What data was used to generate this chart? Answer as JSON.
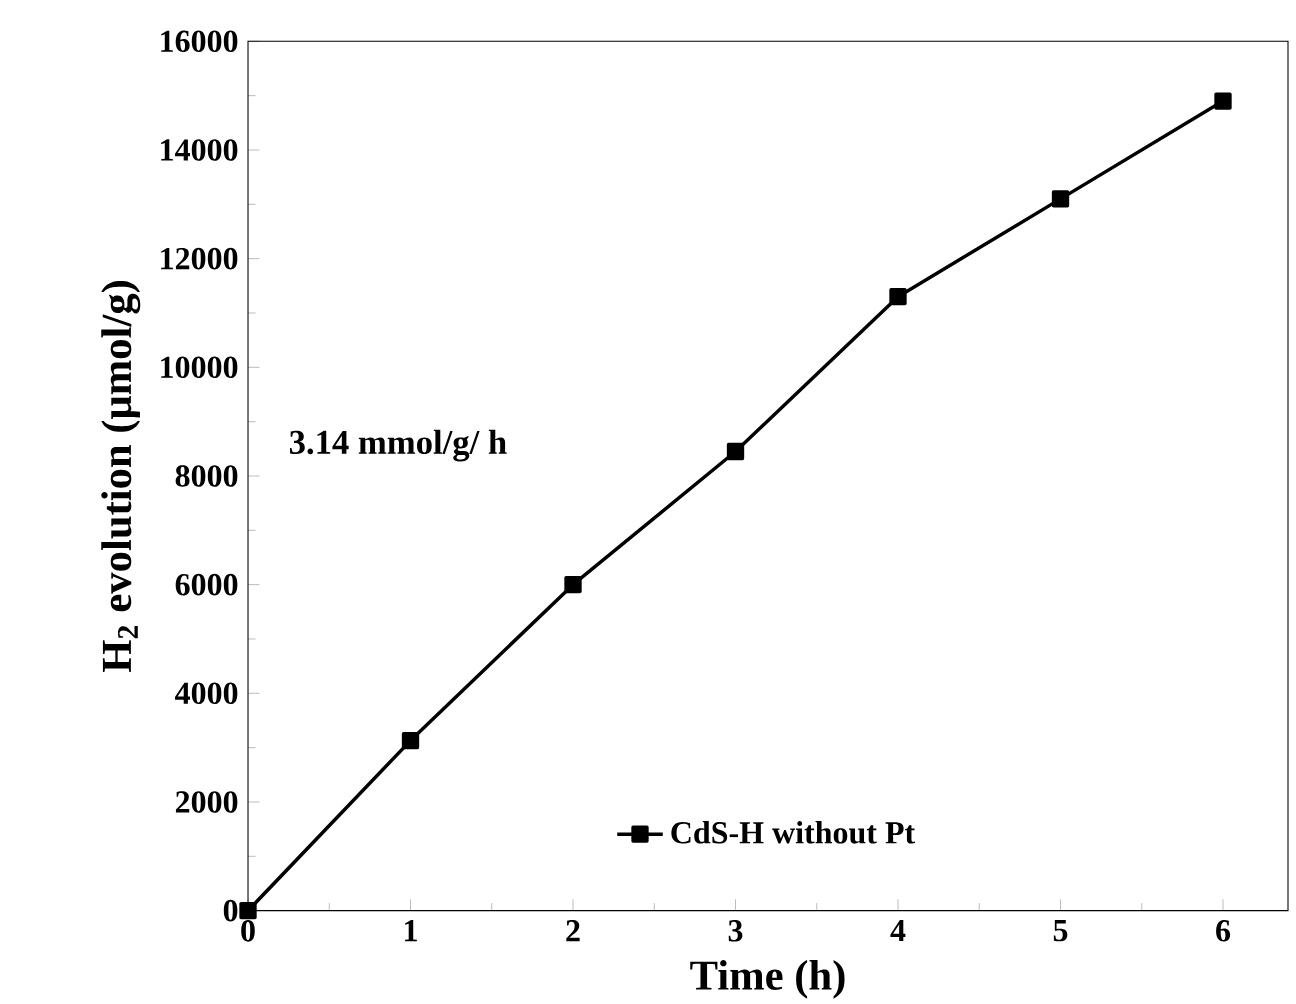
{
  "chart_data": {
    "type": "line",
    "xlabel": "Time (h)",
    "ylabel": "H$_{2}$ evolution (μmol/g)",
    "x": [
      0,
      1,
      2,
      3,
      4,
      5,
      6
    ],
    "series": [
      {
        "name": "CdS-H without Pt",
        "color": "#000000",
        "values": [
          0,
          3130,
          6000,
          8450,
          11300,
          13100,
          14900
        ]
      }
    ],
    "xlim": [
      0,
      6.4
    ],
    "ylim": [
      0,
      16000
    ],
    "xticks": [
      0,
      1,
      2,
      3,
      4,
      5,
      6
    ],
    "yticks": [
      0,
      2000,
      4000,
      6000,
      8000,
      10000,
      12000,
      14000,
      16000
    ],
    "annotations": [
      "3.14 mmol/g/ h"
    ],
    "marker": "square",
    "line_style": "solid",
    "legend": "bottom",
    "grid": false
  }
}
